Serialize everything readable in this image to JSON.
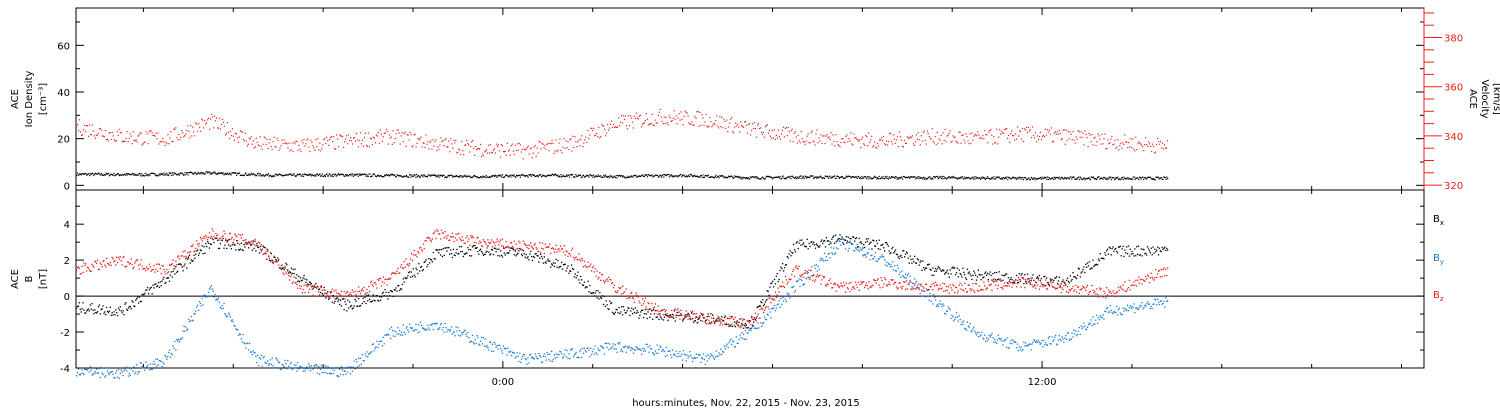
{
  "colors": {
    "axis": "#000000",
    "black_series": "#000000",
    "red_series": "#e8201a",
    "blue_series": "#1a7ad4",
    "background": "#ffffff"
  },
  "footer": {
    "xlabel": "hours:minutes, Nov. 22, 2015 - Nov. 23, 2015"
  },
  "chart_data": [
    {
      "type": "scatter",
      "panel": "top",
      "title": "",
      "xlabel": "hours:minutes, Nov. 22, 2015 - Nov. 23, 2015",
      "x_ticks": [
        "0:00",
        "12:00"
      ],
      "xlim_hours": [
        -9.5,
        20.5
      ],
      "ylabel_left": [
        "ACE",
        "Ion Density",
        "[cm⁻³]"
      ],
      "ylim_left": [
        -2,
        76
      ],
      "yticks_left": [
        0,
        20,
        40,
        60
      ],
      "ylabel_right": [
        "ACE",
        "Velocity",
        "[km/s]"
      ],
      "ylim_right": [
        318,
        392
      ],
      "yticks_right": [
        320,
        340,
        360,
        380
      ],
      "series": [
        {
          "label": "Ion Density",
          "axis": "left",
          "color": "black",
          "x": [
            -9.5,
            -8.0,
            -6.5,
            -5.0,
            -3.5,
            -2.0,
            -0.5,
            1.0,
            2.5,
            4.0,
            5.5,
            7.0,
            8.5,
            10.0,
            11.5,
            13.0,
            14.8
          ],
          "y": [
            5.0,
            4.8,
            5.5,
            4.5,
            4.7,
            4.3,
            4.0,
            4.5,
            4.0,
            4.5,
            3.5,
            3.8,
            3.5,
            3.5,
            3.2,
            3.3,
            3.2
          ]
        },
        {
          "label": "Velocity",
          "axis": "right",
          "color": "red",
          "x": [
            -9.5,
            -8.5,
            -7.5,
            -6.5,
            -5.5,
            -4.5,
            -3.5,
            -2.5,
            -1.5,
            -0.5,
            0.5,
            1.5,
            2.5,
            3.5,
            4.5,
            5.5,
            6.5,
            7.5,
            8.5,
            9.5,
            10.5,
            11.5,
            12.5,
            13.5,
            14.8
          ],
          "y": [
            344,
            340,
            339,
            346,
            337,
            336,
            338,
            340,
            337,
            335,
            334,
            337,
            345,
            348,
            347,
            343,
            340,
            339,
            338,
            340,
            339,
            341,
            340,
            338,
            336
          ]
        }
      ]
    },
    {
      "type": "scatter",
      "panel": "bottom",
      "title": "",
      "xlabel": "hours:minutes, Nov. 22, 2015 - Nov. 23, 2015",
      "x_ticks": [
        "0:00",
        "12:00"
      ],
      "xlim_hours": [
        -9.5,
        20.5
      ],
      "ylabel": [
        "ACE",
        "B",
        "[nT]"
      ],
      "ylim": [
        -4.0,
        5.9
      ],
      "yticks": [
        -4,
        -2,
        0,
        2,
        4
      ],
      "series": [
        {
          "label": "Bx",
          "color": "black",
          "x": [
            -9.5,
            -8.5,
            -7.5,
            -6.5,
            -5.5,
            -4.5,
            -3.5,
            -2.5,
            -1.5,
            -0.5,
            0.5,
            1.5,
            2.5,
            3.5,
            4.5,
            5.5,
            6.5,
            7.5,
            8.5,
            9.5,
            10.5,
            11.5,
            12.5,
            13.5,
            14.8
          ],
          "y": [
            -0.6,
            -0.8,
            1.0,
            3.0,
            2.8,
            1.0,
            -0.5,
            0.2,
            2.4,
            2.6,
            2.4,
            1.5,
            -0.8,
            -1.0,
            -1.2,
            -1.5,
            2.8,
            3.2,
            2.8,
            1.5,
            1.2,
            1.0,
            0.8,
            2.5,
            2.6
          ]
        },
        {
          "label": "By",
          "color": "blue",
          "x": [
            -9.5,
            -8.5,
            -7.5,
            -6.5,
            -5.5,
            -4.5,
            -3.5,
            -2.5,
            -1.5,
            -0.5,
            0.5,
            1.5,
            2.5,
            3.5,
            4.5,
            5.5,
            6.5,
            7.5,
            8.5,
            9.5,
            10.5,
            11.5,
            12.5,
            13.5,
            14.8
          ],
          "y": [
            -4.1,
            -4.3,
            -3.5,
            0.5,
            -3.5,
            -4.0,
            -4.2,
            -2.0,
            -1.5,
            -2.5,
            -3.5,
            -3.2,
            -2.8,
            -3.0,
            -3.5,
            -2.0,
            0.5,
            3.0,
            2.0,
            0.0,
            -2.0,
            -2.8,
            -2.3,
            -0.8,
            -0.3
          ]
        },
        {
          "label": "Bz",
          "color": "red",
          "x": [
            -9.5,
            -8.5,
            -7.5,
            -6.5,
            -5.5,
            -4.5,
            -3.5,
            -2.5,
            -1.5,
            -0.5,
            0.5,
            1.5,
            2.5,
            3.5,
            4.5,
            5.5,
            6.5,
            7.5,
            8.5,
            9.5,
            10.5,
            11.5,
            12.5,
            13.5,
            14.8
          ],
          "y": [
            1.5,
            2.0,
            1.5,
            3.5,
            3.0,
            0.5,
            0.0,
            1.0,
            3.5,
            3.0,
            2.8,
            2.5,
            0.5,
            -0.8,
            -1.2,
            -1.5,
            1.5,
            0.5,
            0.8,
            0.5,
            0.5,
            0.8,
            0.5,
            0.2,
            1.5
          ]
        }
      ],
      "legend": {
        "placement": "right",
        "entries": [
          "Bx",
          "By",
          "Bz"
        ]
      }
    }
  ]
}
